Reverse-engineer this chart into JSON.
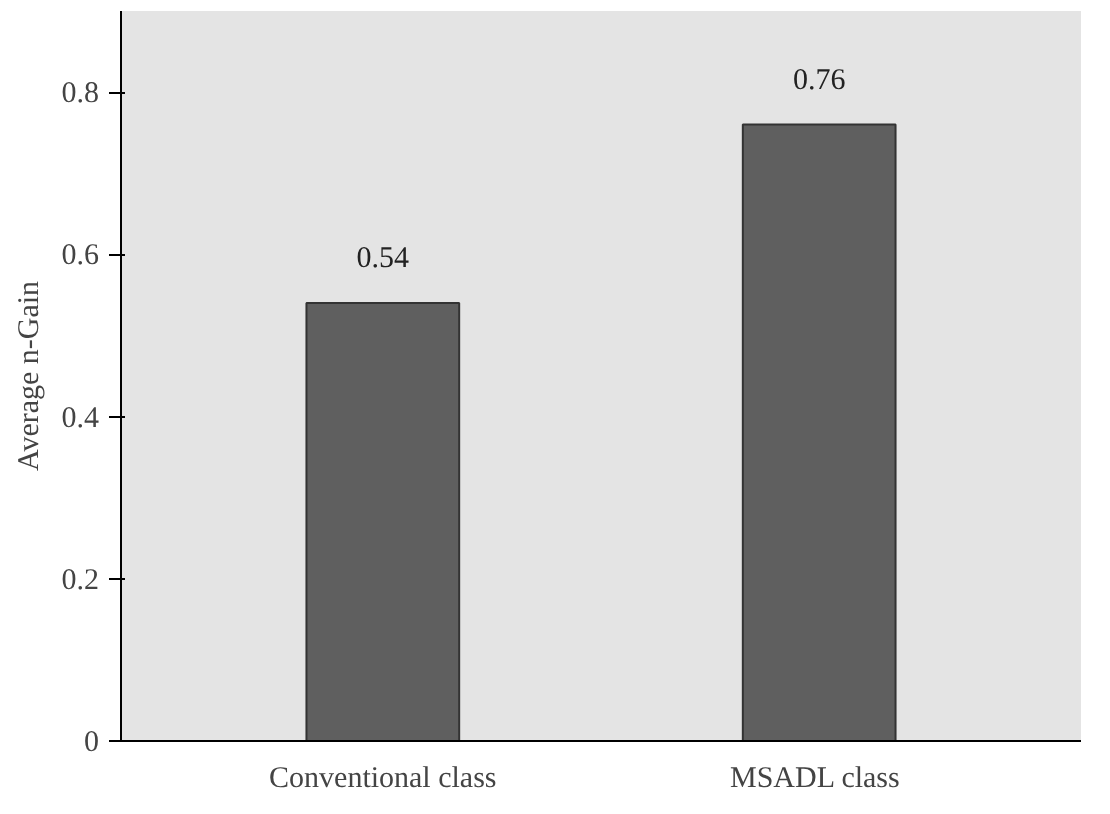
{
  "chart_data": {
    "type": "bar",
    "ylabel": "Average n-Gain",
    "categories": [
      "Conventional class",
      "MSADL  class"
    ],
    "values": [
      0.54,
      0.76
    ],
    "color": "#5f5f5f",
    "ylim": [
      0,
      0.9
    ],
    "yticks": [
      0,
      0.2,
      0.4,
      0.6,
      0.8
    ],
    "data_labels": true
  }
}
